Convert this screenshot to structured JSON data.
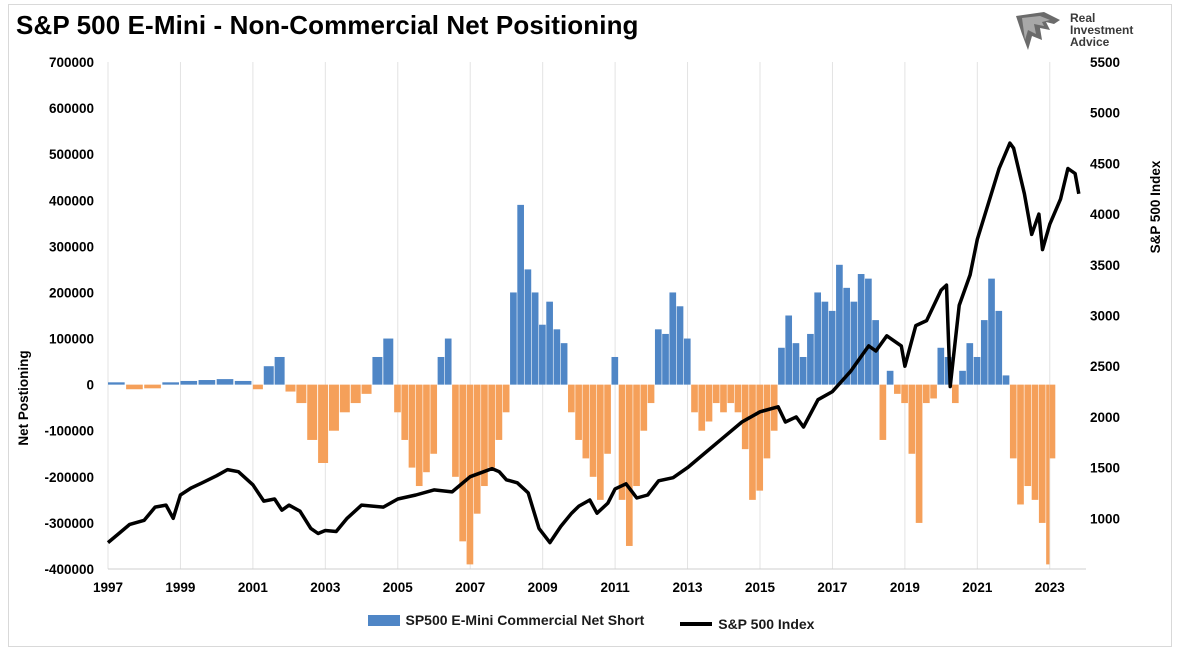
{
  "chart_data": {
    "type": "bar+line",
    "title": "S&P 500 E-Mini - Non-Commercial Net Positioning",
    "ylabel_left": "Net Postioning",
    "ylabel_right": "S&P 500 Index",
    "ylim_left": [
      -400000,
      700000
    ],
    "ylim_right": [
      500,
      5500
    ],
    "y_ticks_left": [
      "700000",
      "600000",
      "500000",
      "400000",
      "300000",
      "200000",
      "100000",
      "0",
      "-100000",
      "-200000",
      "-300000",
      "-400000"
    ],
    "y_ticks_right": [
      "5500",
      "5000",
      "4500",
      "4000",
      "3500",
      "3000",
      "2500",
      "2000",
      "1500",
      "1000"
    ],
    "x_ticks": [
      "1997",
      "1999",
      "2001",
      "2003",
      "2005",
      "2007",
      "2009",
      "2011",
      "2013",
      "2015",
      "2017",
      "2019",
      "2021",
      "2023"
    ],
    "xlim": [
      1997.0,
      2024.0
    ],
    "grid": "vertical",
    "legend_position": "bottom",
    "colors": {
      "positive": "#4f86c6",
      "negative": "#f5a05a",
      "line": "#000000"
    },
    "series": [
      {
        "name": "SP500 E-Mini Commercial Net Short",
        "kind": "bar",
        "x": [
          1997.0,
          1997.5,
          1998.0,
          1998.5,
          1999.0,
          1999.5,
          2000.0,
          2000.5,
          2001.0,
          2001.3,
          2001.6,
          2001.9,
          2002.2,
          2002.5,
          2002.8,
          2003.1,
          2003.4,
          2003.7,
          2004.0,
          2004.3,
          2004.6,
          2004.9,
          2005.1,
          2005.3,
          2005.5,
          2005.7,
          2005.9,
          2006.1,
          2006.3,
          2006.5,
          2006.7,
          2006.9,
          2007.1,
          2007.3,
          2007.5,
          2007.7,
          2007.9,
          2008.1,
          2008.3,
          2008.5,
          2008.7,
          2008.9,
          2009.1,
          2009.3,
          2009.5,
          2009.7,
          2009.9,
          2010.1,
          2010.3,
          2010.5,
          2010.7,
          2010.9,
          2011.1,
          2011.3,
          2011.5,
          2011.7,
          2011.9,
          2012.1,
          2012.3,
          2012.5,
          2012.7,
          2012.9,
          2013.1,
          2013.3,
          2013.5,
          2013.7,
          2013.9,
          2014.1,
          2014.3,
          2014.5,
          2014.7,
          2014.9,
          2015.1,
          2015.3,
          2015.5,
          2015.7,
          2015.9,
          2016.1,
          2016.3,
          2016.5,
          2016.7,
          2016.9,
          2017.1,
          2017.3,
          2017.5,
          2017.7,
          2017.9,
          2018.1,
          2018.3,
          2018.5,
          2018.7,
          2018.9,
          2019.1,
          2019.3,
          2019.5,
          2019.7,
          2019.9,
          2020.1,
          2020.3,
          2020.5,
          2020.7,
          2020.9,
          2021.1,
          2021.3,
          2021.5,
          2021.7,
          2021.9,
          2022.1,
          2022.3,
          2022.5,
          2022.7,
          2022.9,
          2023.0
        ],
        "values": [
          5000,
          -10000,
          -8000,
          5000,
          8000,
          10000,
          12000,
          8000,
          -10000,
          40000,
          60000,
          -15000,
          -40000,
          -120000,
          -170000,
          -100000,
          -60000,
          -40000,
          -20000,
          60000,
          100000,
          -60000,
          -120000,
          -180000,
          -220000,
          -190000,
          -150000,
          60000,
          100000,
          -200000,
          -340000,
          -390000,
          -280000,
          -220000,
          -180000,
          -120000,
          -60000,
          200000,
          390000,
          250000,
          200000,
          130000,
          180000,
          120000,
          90000,
          -60000,
          -120000,
          -160000,
          -200000,
          -250000,
          -150000,
          60000,
          -250000,
          -350000,
          -220000,
          -100000,
          -40000,
          120000,
          110000,
          200000,
          170000,
          100000,
          -60000,
          -100000,
          -80000,
          -40000,
          -60000,
          -40000,
          -60000,
          -140000,
          -250000,
          -230000,
          -160000,
          -100000,
          80000,
          150000,
          90000,
          60000,
          110000,
          200000,
          180000,
          160000,
          260000,
          210000,
          180000,
          240000,
          230000,
          140000,
          -120000,
          30000,
          -20000,
          -40000,
          -150000,
          -300000,
          -40000,
          -30000,
          80000,
          60000,
          -40000,
          30000,
          90000,
          60000,
          140000,
          230000,
          160000,
          20000,
          -160000,
          -260000,
          -220000,
          -250000,
          -300000,
          -390000,
          -160000
        ]
      },
      {
        "name": "S&P 500 Index",
        "kind": "line",
        "x": [
          1997.0,
          1997.3,
          1997.6,
          1998.0,
          1998.3,
          1998.6,
          1998.8,
          1999.0,
          1999.3,
          1999.6,
          2000.0,
          2000.3,
          2000.6,
          2001.0,
          2001.3,
          2001.6,
          2001.8,
          2002.0,
          2002.3,
          2002.6,
          2002.8,
          2003.0,
          2003.3,
          2003.6,
          2004.0,
          2004.3,
          2004.6,
          2005.0,
          2005.5,
          2006.0,
          2006.5,
          2007.0,
          2007.3,
          2007.6,
          2007.8,
          2008.0,
          2008.3,
          2008.6,
          2008.9,
          2009.2,
          2009.5,
          2009.8,
          2010.0,
          2010.3,
          2010.5,
          2010.8,
          2011.0,
          2011.3,
          2011.6,
          2011.9,
          2012.2,
          2012.6,
          2013.0,
          2013.5,
          2014.0,
          2014.5,
          2015.0,
          2015.5,
          2015.7,
          2016.0,
          2016.2,
          2016.6,
          2017.0,
          2017.5,
          2018.0,
          2018.2,
          2018.5,
          2018.9,
          2019.0,
          2019.3,
          2019.6,
          2020.0,
          2020.15,
          2020.25,
          2020.5,
          2020.8,
          2021.0,
          2021.3,
          2021.6,
          2021.9,
          2022.0,
          2022.3,
          2022.5,
          2022.7,
          2022.8,
          2023.0,
          2023.3,
          2023.5,
          2023.7,
          2023.8
        ],
        "values": [
          760,
          850,
          940,
          980,
          1110,
          1130,
          1000,
          1230,
          1300,
          1350,
          1420,
          1480,
          1460,
          1330,
          1170,
          1190,
          1080,
          1130,
          1070,
          900,
          850,
          880,
          870,
          1000,
          1130,
          1120,
          1110,
          1190,
          1230,
          1280,
          1260,
          1410,
          1450,
          1490,
          1460,
          1380,
          1350,
          1250,
          900,
          760,
          920,
          1050,
          1120,
          1180,
          1050,
          1150,
          1290,
          1340,
          1200,
          1230,
          1370,
          1400,
          1500,
          1650,
          1800,
          1950,
          2050,
          2100,
          1950,
          2000,
          1900,
          2170,
          2250,
          2450,
          2700,
          2650,
          2800,
          2700,
          2500,
          2900,
          2950,
          3250,
          3300,
          2300,
          3100,
          3400,
          3750,
          4100,
          4450,
          4700,
          4650,
          4200,
          3800,
          4000,
          3650,
          3900,
          4150,
          4450,
          4400,
          4200
        ]
      }
    ]
  },
  "legend": {
    "bars_label": "SP500 E-Mini Commercial Net Short",
    "line_label": "S&P 500 Index"
  },
  "logo": {
    "line1": "Real",
    "line2": "Investment",
    "line3": "Advice",
    "icon": "eagle-head-icon"
  }
}
